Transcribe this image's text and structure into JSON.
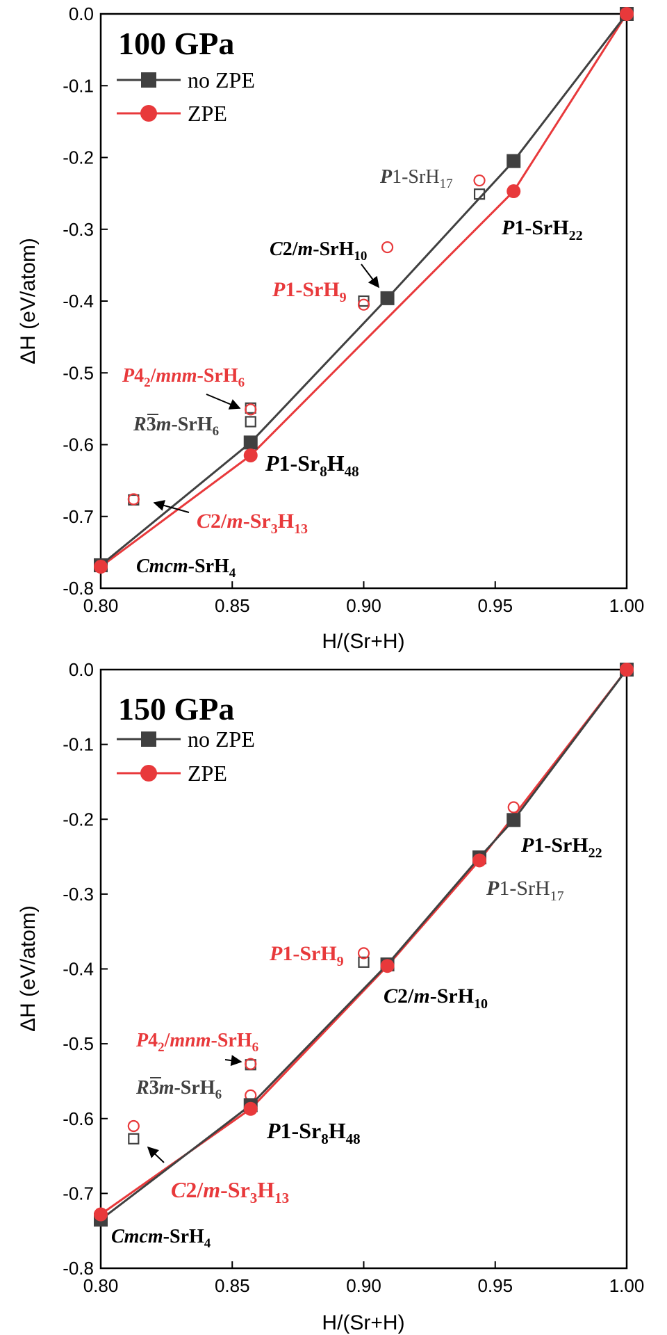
{
  "chart_data": [
    {
      "type": "line",
      "title": "100 GPa",
      "xlabel": "H/(Sr+H)",
      "ylabel": "ΔH (eV/atom)",
      "xlim": [
        0.8,
        1.0
      ],
      "ylim": [
        -0.8,
        0.0
      ],
      "xticks": [
        "0.80",
        "0.85",
        "0.90",
        "0.95",
        "1.00"
      ],
      "yticks": [
        "0.0",
        "-0.1",
        "-0.2",
        "-0.3",
        "-0.4",
        "-0.5",
        "-0.6",
        "-0.7",
        "-0.8"
      ],
      "legend": {
        "position": "top-left",
        "entries": [
          "no ZPE",
          "ZPE"
        ]
      },
      "series": [
        {
          "name": "no ZPE",
          "color": "#404040",
          "marker": "square",
          "x": [
            0.8,
            0.857,
            0.909,
            0.957,
            1.0
          ],
          "y": [
            -0.768,
            -0.597,
            -0.396,
            -0.205,
            0.0
          ]
        },
        {
          "name": "ZPE",
          "color": "#e8393b",
          "marker": "circle",
          "x": [
            0.8,
            0.857,
            0.957,
            1.0
          ],
          "y": [
            -0.77,
            -0.615,
            -0.247,
            0.0
          ]
        }
      ],
      "metastable": {
        "no_zpe": {
          "x": [
            0.8125,
            0.857,
            0.857,
            0.9,
            0.944
          ],
          "y": [
            -0.677,
            -0.549,
            -0.568,
            -0.4,
            -0.251
          ]
        },
        "zpe": {
          "x": [
            0.8125,
            0.857,
            0.9,
            0.909,
            0.944
          ],
          "y": [
            -0.676,
            -0.551,
            -0.405,
            -0.325,
            -0.232
          ]
        }
      },
      "annotations": [
        {
          "text": "P1-SrH17",
          "color": "#404040",
          "bold": false,
          "italic_prefix": "P",
          "sub_start": 6
        },
        {
          "text": "P1-SrH22",
          "color": "#000000",
          "bold": true
        },
        {
          "text": "C2/m-SrH10",
          "color": "#000000",
          "bold": true
        },
        {
          "text": "P1-SrH9",
          "color": "#e8393b",
          "bold": true
        },
        {
          "text": "P42/mnm-SrH6",
          "color": "#e8393b",
          "bold": true
        },
        {
          "text": "R3m-SrH6",
          "color": "#404040",
          "bold": true
        },
        {
          "text": "P1-Sr8H48",
          "color": "#000000",
          "bold": true
        },
        {
          "text": "C2/m-Sr3H13",
          "color": "#e8393b",
          "bold": true
        },
        {
          "text": "Cmcm-SrH4",
          "color": "#000000",
          "bold": true
        }
      ]
    },
    {
      "type": "line",
      "title": "150 GPa",
      "xlabel": "H/(Sr+H)",
      "ylabel": "ΔH (eV/atom)",
      "xlim": [
        0.8,
        1.0
      ],
      "ylim": [
        -0.8,
        0.0
      ],
      "xticks": [
        "0.80",
        "0.85",
        "0.90",
        "0.95",
        "1.00"
      ],
      "yticks": [
        "0.0",
        "-0.1",
        "-0.2",
        "-0.3",
        "-0.4",
        "-0.5",
        "-0.6",
        "-0.7",
        "-0.8"
      ],
      "legend": {
        "position": "top-left",
        "entries": [
          "no ZPE",
          "ZPE"
        ]
      },
      "series": [
        {
          "name": "no ZPE",
          "color": "#404040",
          "marker": "square",
          "x": [
            0.8,
            0.857,
            0.909,
            0.944,
            0.957,
            1.0
          ],
          "y": [
            -0.735,
            -0.582,
            -0.394,
            -0.251,
            -0.201,
            0.0
          ]
        },
        {
          "name": "ZPE",
          "color": "#e8393b",
          "marker": "circle",
          "x": [
            0.8,
            0.857,
            0.909,
            0.944,
            1.0
          ],
          "y": [
            -0.728,
            -0.587,
            -0.396,
            -0.255,
            0.0
          ]
        }
      ],
      "metastable": {
        "no_zpe": {
          "x": [
            0.8125,
            0.857,
            0.9
          ],
          "y": [
            -0.627,
            -0.528,
            -0.391
          ]
        },
        "zpe": {
          "x": [
            0.8125,
            0.857,
            0.857,
            0.9,
            0.957
          ],
          "y": [
            -0.61,
            -0.527,
            -0.569,
            -0.379,
            -0.184
          ]
        }
      },
      "annotations": [
        {
          "text": "P1-SrH22",
          "color": "#000000",
          "bold": true
        },
        {
          "text": "P1-SrH17",
          "color": "#404040",
          "bold": false
        },
        {
          "text": "P1-SrH9",
          "color": "#e8393b",
          "bold": true
        },
        {
          "text": "C2/m-SrH10",
          "color": "#000000",
          "bold": true
        },
        {
          "text": "P42/mnm-SrH6",
          "color": "#e8393b",
          "bold": true
        },
        {
          "text": "R3m-SrH6",
          "color": "#404040",
          "bold": true
        },
        {
          "text": "P1-Sr8H48",
          "color": "#000000",
          "bold": true
        },
        {
          "text": "C2/m-Sr3H13",
          "color": "#e8393b",
          "bold": true
        },
        {
          "text": "Cmcm-SrH4",
          "color": "#000000",
          "bold": true
        }
      ]
    }
  ]
}
